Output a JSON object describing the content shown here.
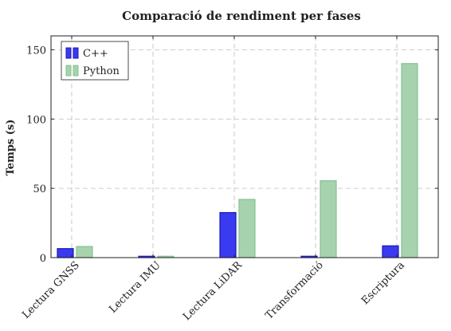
{
  "chart_data": {
    "type": "bar",
    "title": "Comparació de rendiment per fases",
    "ylabel": "Temps (s)",
    "xlabel": "",
    "categories": [
      "Lectura GNSS",
      "Lectura IMU",
      "Lectura LiDAR",
      "Transformació",
      "Escriptura"
    ],
    "series": [
      {
        "name": "C++",
        "values": [
          6.5,
          1.0,
          32.5,
          1.0,
          8.5
        ],
        "color": "#3a3af0",
        "stroke": "#1a1ab0"
      },
      {
        "name": "Python",
        "values": [
          8.0,
          1.0,
          42.0,
          55.5,
          140.0
        ],
        "color": "#a6d3ad",
        "stroke": "#86c091"
      }
    ],
    "ylim": [
      0,
      160
    ],
    "yticks": [
      0,
      50,
      100,
      150
    ],
    "grid": true,
    "legend_position": "top-left"
  }
}
